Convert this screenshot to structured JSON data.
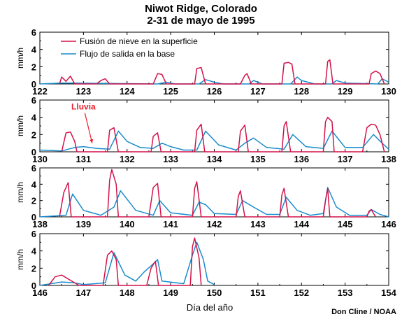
{
  "title": "Niwot Ridge, Colorado",
  "subtitle": "2-31 de mayo de 1995",
  "credit": "Don Cline / NOAA",
  "colors": {
    "melt": "#d4124a",
    "outflow": "#1a8ccc",
    "annotation": "#e8202e"
  },
  "chart_data": {
    "type": "line",
    "xlabel": "Día del año",
    "ylabel": "mm/h",
    "legend": {
      "placement": "top-left",
      "melt": "Fusión de nieve en la superficie",
      "outflow": "Flujo de salida en la base"
    },
    "annotation": {
      "text": "Lluvia",
      "panel": 1,
      "x": 131.0,
      "y": 4.9,
      "arrow_to": [
        131.2,
        1.0
      ]
    },
    "panels": [
      {
        "xlim": [
          122,
          130
        ],
        "ylim": [
          0,
          6
        ],
        "yticks": [
          0,
          2,
          4,
          6
        ],
        "xticks": [
          122,
          123,
          124,
          125,
          126,
          127,
          128,
          129,
          130
        ],
        "melt": [
          [
            122.45,
            0
          ],
          [
            122.5,
            0.8
          ],
          [
            122.6,
            0.3
          ],
          [
            122.7,
            0.9
          ],
          [
            122.8,
            0
          ],
          [
            123.3,
            0
          ],
          [
            123.4,
            0.4
          ],
          [
            123.5,
            0.6
          ],
          [
            123.6,
            0
          ],
          [
            124.6,
            0
          ],
          [
            124.7,
            1.2
          ],
          [
            124.8,
            1.1
          ],
          [
            124.9,
            0
          ],
          [
            125.55,
            0
          ],
          [
            125.6,
            1.8
          ],
          [
            125.7,
            1.9
          ],
          [
            125.8,
            0
          ],
          [
            126.6,
            0
          ],
          [
            126.7,
            1.0
          ],
          [
            126.75,
            1.2
          ],
          [
            126.85,
            0
          ],
          [
            127.55,
            0
          ],
          [
            127.6,
            2.4
          ],
          [
            127.7,
            2.5
          ],
          [
            127.78,
            2.3
          ],
          [
            127.85,
            0
          ],
          [
            128.55,
            0
          ],
          [
            128.6,
            2.6
          ],
          [
            128.65,
            2.8
          ],
          [
            128.72,
            0
          ],
          [
            129.55,
            0
          ],
          [
            129.6,
            1.2
          ],
          [
            129.7,
            1.5
          ],
          [
            129.8,
            1.2
          ],
          [
            129.9,
            0
          ]
        ],
        "outflow": [
          [
            122,
            0
          ],
          [
            122.5,
            0.1
          ],
          [
            122.8,
            0.1
          ],
          [
            124.7,
            0
          ],
          [
            124.9,
            0.2
          ],
          [
            125.1,
            0
          ],
          [
            125.65,
            0
          ],
          [
            125.8,
            0.5
          ],
          [
            126.0,
            0.2
          ],
          [
            126.2,
            0
          ],
          [
            126.8,
            0
          ],
          [
            126.9,
            0.4
          ],
          [
            127.1,
            0
          ],
          [
            127.75,
            0
          ],
          [
            127.9,
            0.8
          ],
          [
            128.0,
            0.4
          ],
          [
            128.3,
            0
          ],
          [
            128.7,
            0
          ],
          [
            128.8,
            0.4
          ],
          [
            129.0,
            0.1
          ],
          [
            129.75,
            0
          ],
          [
            129.85,
            0.6
          ],
          [
            130,
            0.2
          ]
        ]
      },
      {
        "xlim": [
          130,
          138
        ],
        "ylim": [
          0,
          6
        ],
        "yticks": [
          0,
          2,
          4,
          6
        ],
        "xticks": [
          130,
          131,
          132,
          133,
          134,
          135,
          136,
          137,
          138
        ],
        "melt": [
          [
            130.5,
            0
          ],
          [
            130.6,
            2.2
          ],
          [
            130.7,
            2.3
          ],
          [
            130.8,
            1.2
          ],
          [
            130.85,
            0
          ],
          [
            131.55,
            0
          ],
          [
            131.6,
            2.5
          ],
          [
            131.7,
            2.8
          ],
          [
            131.8,
            0
          ],
          [
            132.55,
            0
          ],
          [
            132.6,
            1.8
          ],
          [
            132.7,
            2.2
          ],
          [
            132.78,
            0
          ],
          [
            133.55,
            0
          ],
          [
            133.6,
            2.5
          ],
          [
            133.7,
            3.2
          ],
          [
            133.78,
            0
          ],
          [
            134.55,
            0
          ],
          [
            134.6,
            2.4
          ],
          [
            134.7,
            3.1
          ],
          [
            134.78,
            0
          ],
          [
            135.55,
            0
          ],
          [
            135.6,
            3.0
          ],
          [
            135.65,
            3.5
          ],
          [
            135.75,
            0
          ],
          [
            136.5,
            0
          ],
          [
            136.55,
            3.5
          ],
          [
            136.6,
            4.0
          ],
          [
            136.7,
            3.5
          ],
          [
            136.75,
            0
          ],
          [
            137.4,
            0
          ],
          [
            137.5,
            2.8
          ],
          [
            137.6,
            3.2
          ],
          [
            137.7,
            3.1
          ],
          [
            137.8,
            2.0
          ],
          [
            137.9,
            0
          ]
        ],
        "outflow": [
          [
            130,
            0.2
          ],
          [
            130.5,
            0.1
          ],
          [
            130.8,
            0.5
          ],
          [
            131.0,
            0.6
          ],
          [
            131.3,
            0.4
          ],
          [
            131.6,
            0.3
          ],
          [
            131.8,
            2.4
          ],
          [
            132.0,
            1.2
          ],
          [
            132.3,
            0.5
          ],
          [
            132.6,
            0.4
          ],
          [
            132.8,
            1.0
          ],
          [
            133.0,
            0.6
          ],
          [
            133.3,
            0.2
          ],
          [
            133.6,
            0.2
          ],
          [
            133.8,
            2.4
          ],
          [
            134.1,
            0.8
          ],
          [
            134.5,
            0.2
          ],
          [
            134.7,
            1.0
          ],
          [
            134.9,
            1.6
          ],
          [
            135.2,
            0.5
          ],
          [
            135.6,
            0.3
          ],
          [
            135.8,
            2.0
          ],
          [
            136.1,
            0.6
          ],
          [
            136.5,
            0.4
          ],
          [
            136.7,
            2.4
          ],
          [
            137.0,
            0.5
          ],
          [
            137.4,
            0.5
          ],
          [
            137.65,
            2.0
          ],
          [
            137.85,
            1.0
          ],
          [
            138,
            0.3
          ]
        ]
      },
      {
        "xlim": [
          138,
          146
        ],
        "ylim": [
          0,
          6
        ],
        "yticks": [
          0,
          2,
          4,
          6
        ],
        "xticks": [
          138,
          139,
          140,
          141,
          142,
          143,
          144,
          145,
          146
        ],
        "melt": [
          [
            138.45,
            0
          ],
          [
            138.55,
            3.0
          ],
          [
            138.65,
            4.2
          ],
          [
            138.72,
            0
          ],
          [
            139.55,
            0
          ],
          [
            139.6,
            4.5
          ],
          [
            139.65,
            5.8
          ],
          [
            139.75,
            4.0
          ],
          [
            139.8,
            0
          ],
          [
            140.5,
            0
          ],
          [
            140.6,
            3.6
          ],
          [
            140.7,
            4.1
          ],
          [
            140.78,
            0
          ],
          [
            141.5,
            0
          ],
          [
            141.55,
            3.5
          ],
          [
            141.6,
            4.3
          ],
          [
            141.7,
            0
          ],
          [
            142.5,
            0
          ],
          [
            142.55,
            2.5
          ],
          [
            142.6,
            3.2
          ],
          [
            142.7,
            0
          ],
          [
            143.5,
            0
          ],
          [
            143.55,
            2.7
          ],
          [
            143.6,
            3.5
          ],
          [
            143.7,
            0
          ],
          [
            144.5,
            0
          ],
          [
            144.55,
            2.0
          ],
          [
            144.6,
            3.5
          ],
          [
            144.65,
            0
          ],
          [
            145.5,
            0
          ],
          [
            145.55,
            0.7
          ],
          [
            145.6,
            0.9
          ],
          [
            145.7,
            0
          ]
        ],
        "outflow": [
          [
            138,
            0
          ],
          [
            138.6,
            0.2
          ],
          [
            138.75,
            2.8
          ],
          [
            139.0,
            0.8
          ],
          [
            139.4,
            0.2
          ],
          [
            139.7,
            1.2
          ],
          [
            139.85,
            3.2
          ],
          [
            140.2,
            0.8
          ],
          [
            140.6,
            0.2
          ],
          [
            140.75,
            2.0
          ],
          [
            141.0,
            0.5
          ],
          [
            141.5,
            0.2
          ],
          [
            141.65,
            1.8
          ],
          [
            141.8,
            1.5
          ],
          [
            142.0,
            0.4
          ],
          [
            142.5,
            0.3
          ],
          [
            142.65,
            2.0
          ],
          [
            142.9,
            1.2
          ],
          [
            143.2,
            0.3
          ],
          [
            143.5,
            0.3
          ],
          [
            143.65,
            2.4
          ],
          [
            143.9,
            0.8
          ],
          [
            144.2,
            0.2
          ],
          [
            144.5,
            0.4
          ],
          [
            144.6,
            3.6
          ],
          [
            144.8,
            1.2
          ],
          [
            145.1,
            0.2
          ],
          [
            145.5,
            0.2
          ],
          [
            145.6,
            0.9
          ],
          [
            145.8,
            0.3
          ],
          [
            146,
            0
          ]
        ]
      },
      {
        "xlim": [
          146,
          154
        ],
        "ylim": [
          0,
          6
        ],
        "yticks": [
          0,
          2,
          4,
          6
        ],
        "xticks": [
          146,
          147,
          148,
          149,
          150,
          151,
          152,
          153,
          154
        ],
        "melt": [
          [
            146.2,
            0
          ],
          [
            146.35,
            1.0
          ],
          [
            146.5,
            1.2
          ],
          [
            146.7,
            0.6
          ],
          [
            146.9,
            0
          ],
          [
            147.45,
            0
          ],
          [
            147.55,
            3.5
          ],
          [
            147.65,
            4.0
          ],
          [
            147.75,
            3.0
          ],
          [
            147.8,
            0
          ],
          [
            148.45,
            0
          ],
          [
            148.55,
            2.0
          ],
          [
            148.65,
            2.8
          ],
          [
            148.72,
            0
          ],
          [
            149.45,
            0
          ],
          [
            149.5,
            4.5
          ],
          [
            149.55,
            5.5
          ],
          [
            149.65,
            3.2
          ],
          [
            149.7,
            0
          ]
        ],
        "outflow": [
          [
            146,
            0
          ],
          [
            146.5,
            0.4
          ],
          [
            146.8,
            0.3
          ],
          [
            147.0,
            0.1
          ],
          [
            147.5,
            0.3
          ],
          [
            147.7,
            3.8
          ],
          [
            147.95,
            1.2
          ],
          [
            148.2,
            0.5
          ],
          [
            148.4,
            1.6
          ],
          [
            148.6,
            2.5
          ],
          [
            148.7,
            3.0
          ],
          [
            148.8,
            0.5
          ],
          [
            149.3,
            0.2
          ],
          [
            149.5,
            3.5
          ],
          [
            149.6,
            5.0
          ],
          [
            149.75,
            3.0
          ],
          [
            149.85,
            0.5
          ],
          [
            150,
            0.1
          ]
        ]
      }
    ]
  }
}
